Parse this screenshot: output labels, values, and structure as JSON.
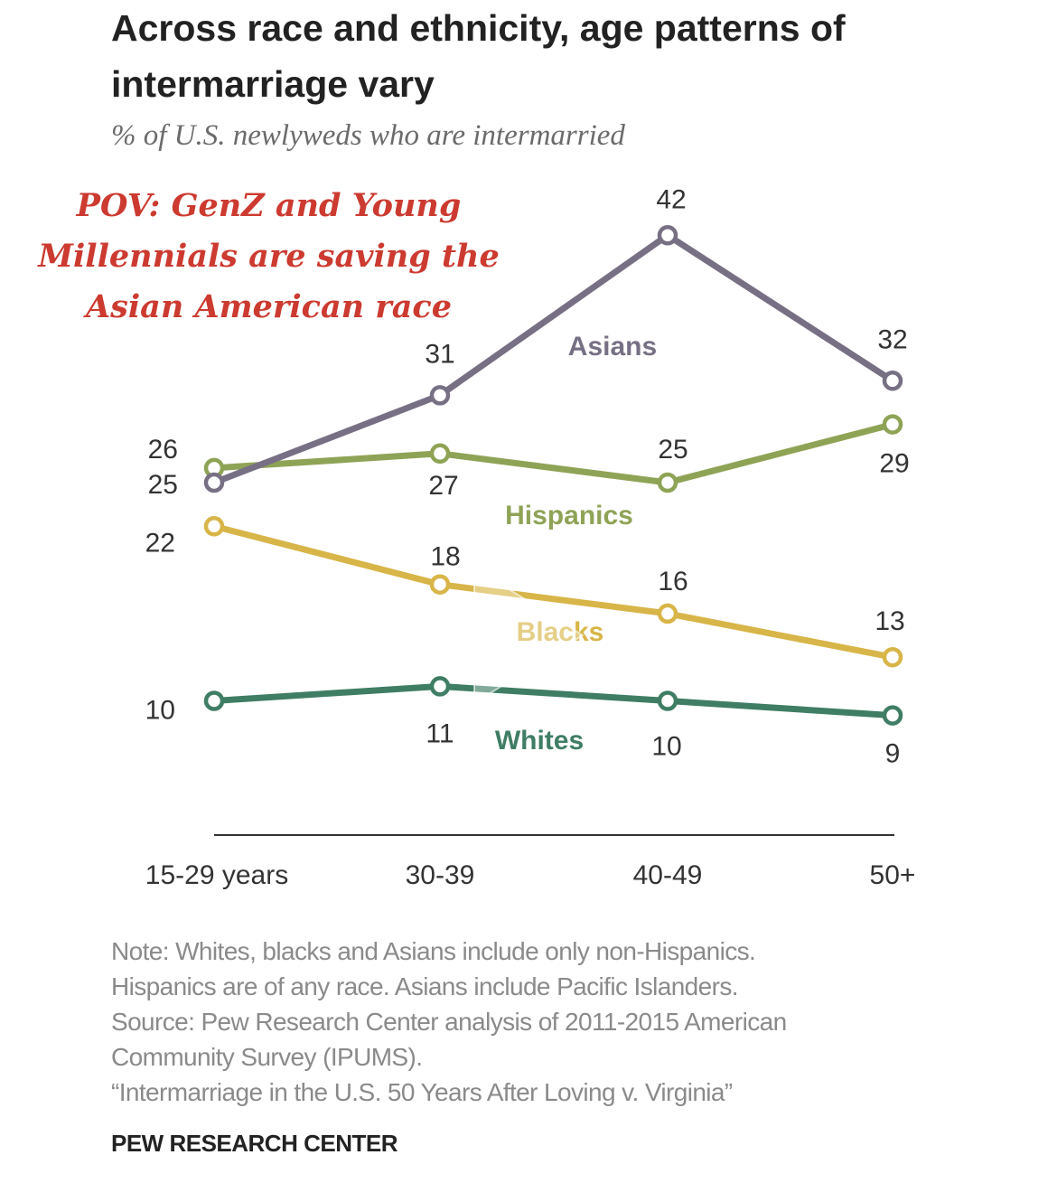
{
  "title": "Across race and ethnicity, age patterns of intermarriage vary",
  "subtitle": "% of U.S. newlyweds who are intermarried",
  "overlay_text": "POV: GenZ and Young Millennials are saving the Asian American race",
  "colors": {
    "asians": "#777085",
    "hispanics": "#8fa356",
    "blacks": "#d8b548",
    "whites": "#3f7d64",
    "overlay": "#cc3a30",
    "axis": "#333333"
  },
  "chart_data": {
    "type": "line",
    "categories": [
      "15-29 years",
      "30-39",
      "40-49",
      "50+"
    ],
    "ylim": [
      0,
      45
    ],
    "grid": false,
    "xlabel": "",
    "ylabel": "",
    "series": [
      {
        "name": "Asians",
        "values": [
          25,
          31,
          42,
          32
        ]
      },
      {
        "name": "Hispanics",
        "values": [
          26,
          27,
          25,
          29
        ]
      },
      {
        "name": "Blacks",
        "values": [
          22,
          18,
          16,
          13
        ]
      },
      {
        "name": "Whites",
        "values": [
          10,
          11,
          10,
          9
        ]
      }
    ]
  },
  "notes": [
    "Note: Whites, blacks and Asians include only non-Hispanics.",
    "Hispanics are of any race. Asians include Pacific Islanders.",
    "Source: Pew Research Center analysis of 2011-2015 American",
    "Community Survey (IPUMS).",
    "“Intermarriage in the U.S. 50 Years After Loving v. Virginia”"
  ],
  "source_org": "PEW RESEARCH CENTER"
}
